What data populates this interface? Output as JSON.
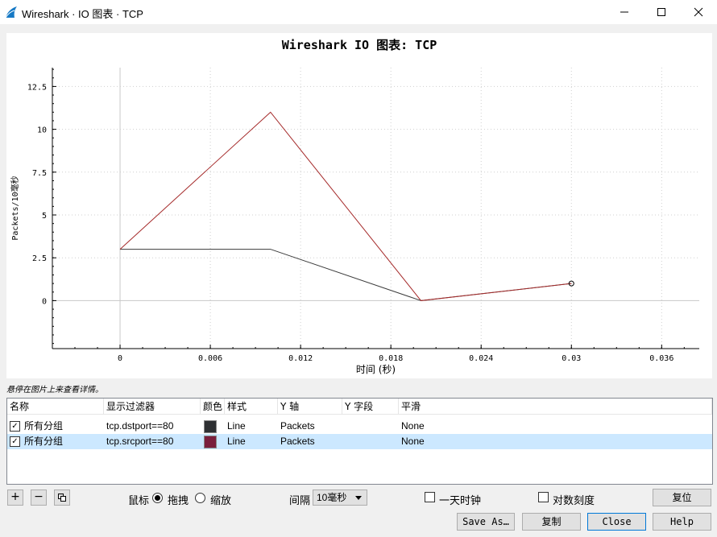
{
  "window": {
    "title": "Wireshark · IO 图表 · TCP"
  },
  "hint": "悬停在图片上来查看详情。",
  "chart_data": {
    "type": "line",
    "title": "Wireshark IO 图表: TCP",
    "xlabel": "时间 (秒)",
    "ylabel": "Packets/10毫秒",
    "xlim": [
      -0.0045,
      0.0385
    ],
    "ylim": [
      -2.8,
      13.6
    ],
    "xticks": [
      0,
      0.006,
      0.012,
      0.018,
      0.024,
      0.03,
      0.036
    ],
    "xtick_labels": [
      "0",
      "0.006",
      "0.012",
      "0.018",
      "0.024",
      "0.03",
      "0.036"
    ],
    "yticks": [
      0,
      2.5,
      5,
      7.5,
      10,
      12.5
    ],
    "ytick_labels": [
      "0",
      "2.5",
      "5",
      "7.5",
      "10",
      "12.5"
    ],
    "grid": true,
    "series": [
      {
        "name": "tcp.dstport==80",
        "color": "#3a3a3a",
        "x": [
          0,
          0.01,
          0.02,
          0.03
        ],
        "y": [
          3,
          3,
          0,
          1
        ]
      },
      {
        "name": "tcp.srcport==80",
        "color": "#a52a2a",
        "x": [
          0,
          0.01,
          0.02,
          0.03
        ],
        "y": [
          3,
          11,
          0,
          1
        ]
      }
    ]
  },
  "table": {
    "headers": [
      "名称",
      "显示过滤器",
      "颜色",
      "样式",
      "Y 轴",
      "Y 字段",
      "平滑"
    ],
    "rows": [
      {
        "checked": true,
        "name": "所有分组",
        "filter": "tcp.dstport==80",
        "color": "#2e3033",
        "style": "Line",
        "y_axis": "Packets",
        "y_field": "",
        "smooth": "None"
      },
      {
        "checked": true,
        "name": "所有分组",
        "filter": "tcp.srcport==80",
        "color": "#7a1f3d",
        "style": "Line",
        "y_axis": "Packets",
        "y_field": "",
        "smooth": "None"
      }
    ]
  },
  "controls": {
    "mouse_label": "鼠标",
    "drag_label": "拖拽",
    "zoom_label": "缩放",
    "mouse_mode": "drag",
    "interval_label": "间隔",
    "interval_value": "10毫秒",
    "time_of_day_label": "一天时钟",
    "time_of_day": false,
    "log_scale_label": "对数刻度",
    "log_scale": false,
    "reset_label": "复位"
  },
  "buttons": {
    "save_as": "Save As…",
    "copy": "复制",
    "close": "Close",
    "help": "Help"
  }
}
